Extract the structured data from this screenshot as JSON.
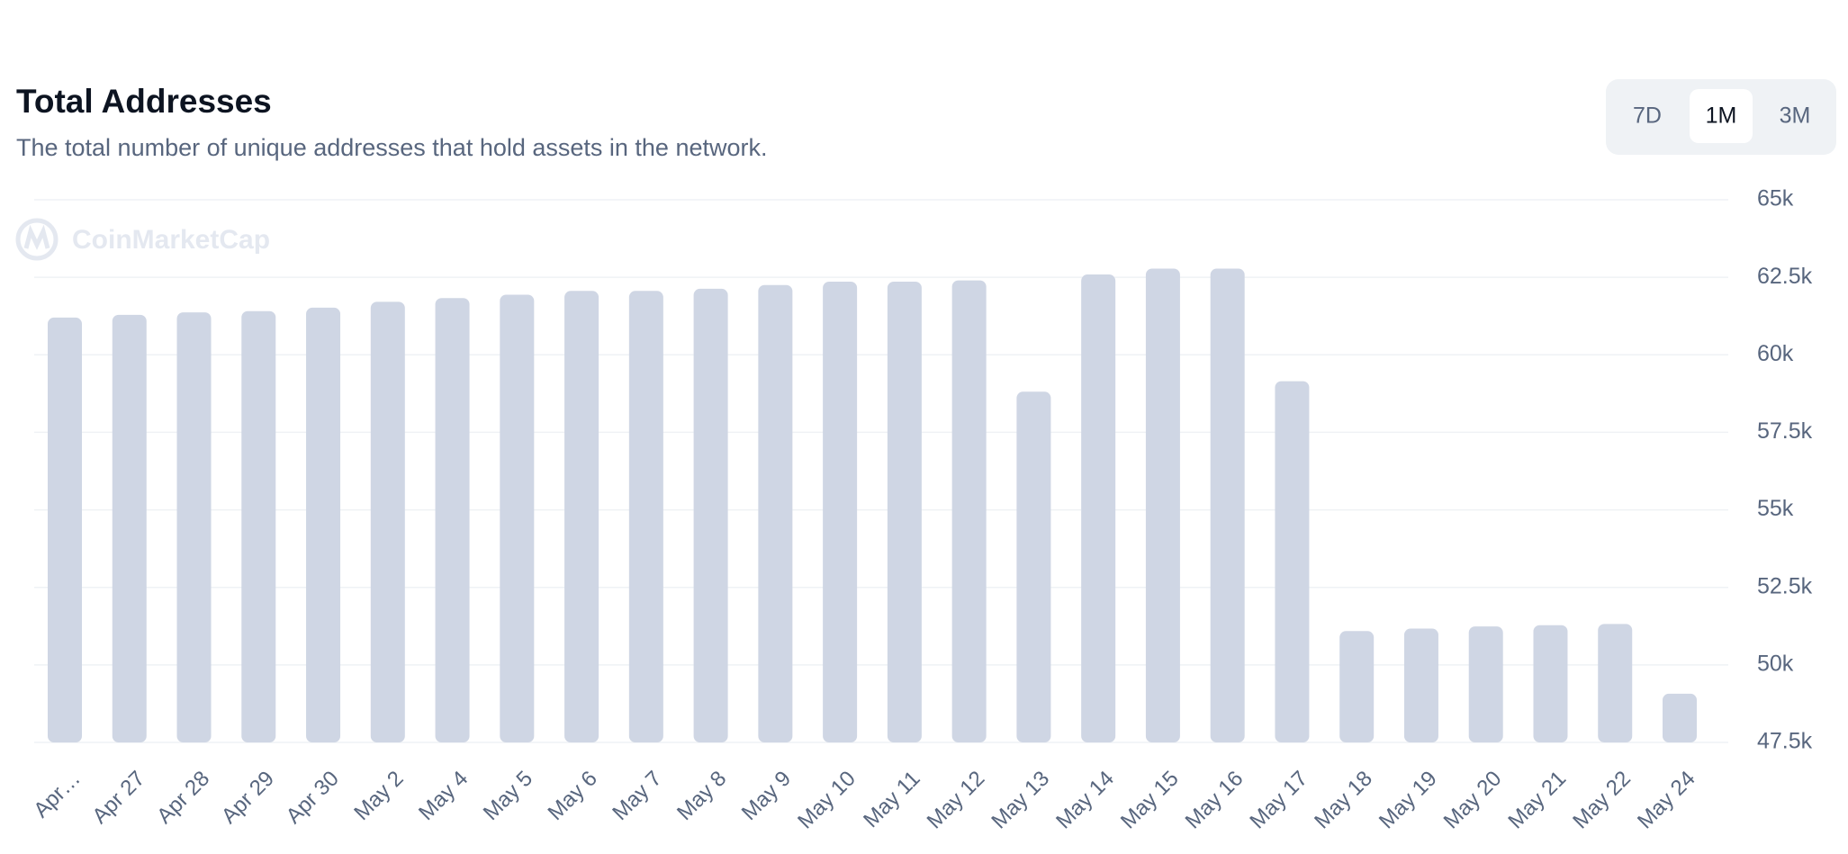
{
  "chart_data": {
    "type": "bar",
    "title": "Total Addresses",
    "subtitle": "The total number of unique addresses that hold assets in the network.",
    "watermark": "CoinMarketCap",
    "range_buttons": [
      "7D",
      "1M",
      "3M"
    ],
    "active_button": 1,
    "categories": [
      "Apr…",
      "Apr 27",
      "Apr 28",
      "Apr 29",
      "Apr 30",
      "May 2",
      "May 4",
      "May 5",
      "May 6",
      "May 7",
      "May 8",
      "May 9",
      "May 10",
      "May 11",
      "May 12",
      "May 13",
      "May 14",
      "May 15",
      "May 16",
      "May 17",
      "May 18",
      "May 19",
      "May 20",
      "May 21",
      "May 22",
      "May 24"
    ],
    "values": [
      61200,
      61290,
      61370,
      61410,
      61520,
      61710,
      61830,
      61940,
      62060,
      62060,
      62130,
      62250,
      62360,
      62360,
      62400,
      58810,
      62590,
      62780,
      62780,
      59150,
      51090,
      51170,
      51240,
      51280,
      51320,
      49070
    ],
    "color": "#cfd6e4",
    "ylim": [
      47500,
      65000
    ],
    "yticks": [
      {
        "value": 47500,
        "label": "47.5k"
      },
      {
        "value": 50000,
        "label": "50k"
      },
      {
        "value": 52500,
        "label": "52.5k"
      },
      {
        "value": 55000,
        "label": "55k"
      },
      {
        "value": 57500,
        "label": "57.5k"
      },
      {
        "value": 60000,
        "label": "60k"
      },
      {
        "value": 62500,
        "label": "62.5k"
      },
      {
        "value": 65000,
        "label": "65k"
      }
    ],
    "grid": true
  }
}
